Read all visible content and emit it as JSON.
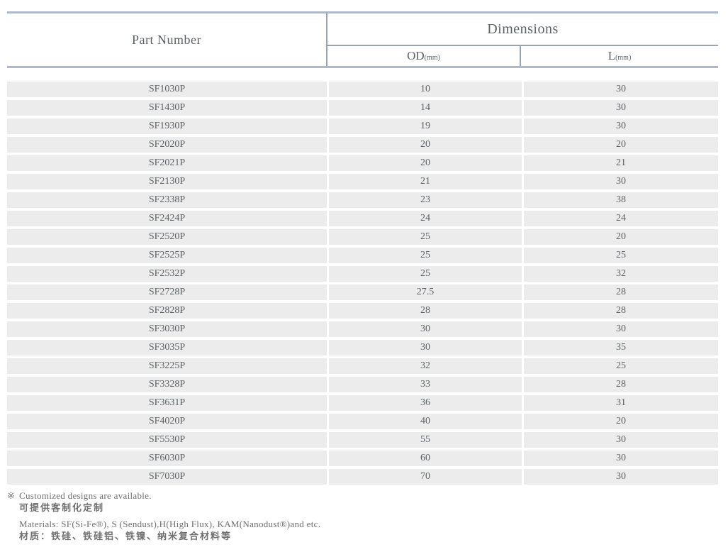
{
  "table": {
    "header": {
      "part_number_label": "Part Number",
      "dimensions_label": "Dimensions",
      "od_label": "OD",
      "od_unit": "(mm)",
      "l_label": "L",
      "l_unit": "(mm)"
    },
    "rows": [
      {
        "part_number": "SF1030P",
        "od_mm": "10",
        "l_mm": "30"
      },
      {
        "part_number": "SF1430P",
        "od_mm": "14",
        "l_mm": "30"
      },
      {
        "part_number": "SF1930P",
        "od_mm": "19",
        "l_mm": "30"
      },
      {
        "part_number": "SF2020P",
        "od_mm": "20",
        "l_mm": "20"
      },
      {
        "part_number": "SF2021P",
        "od_mm": "20",
        "l_mm": "21"
      },
      {
        "part_number": "SF2130P",
        "od_mm": "21",
        "l_mm": "30"
      },
      {
        "part_number": "SF2338P",
        "od_mm": "23",
        "l_mm": "38"
      },
      {
        "part_number": "SF2424P",
        "od_mm": "24",
        "l_mm": "24"
      },
      {
        "part_number": "SF2520P",
        "od_mm": "25",
        "l_mm": "20"
      },
      {
        "part_number": "SF2525P",
        "od_mm": "25",
        "l_mm": "25"
      },
      {
        "part_number": "SF2532P",
        "od_mm": "25",
        "l_mm": "32"
      },
      {
        "part_number": "SF2728P",
        "od_mm": "27.5",
        "l_mm": "28"
      },
      {
        "part_number": "SF2828P",
        "od_mm": "28",
        "l_mm": "28"
      },
      {
        "part_number": "SF3030P",
        "od_mm": "30",
        "l_mm": "30"
      },
      {
        "part_number": "SF3035P",
        "od_mm": "30",
        "l_mm": "35"
      },
      {
        "part_number": "SF3225P",
        "od_mm": "32",
        "l_mm": "25"
      },
      {
        "part_number": "SF3328P",
        "od_mm": "33",
        "l_mm": "28"
      },
      {
        "part_number": "SF3631P",
        "od_mm": "36",
        "l_mm": "31"
      },
      {
        "part_number": "SF4020P",
        "od_mm": "40",
        "l_mm": "20"
      },
      {
        "part_number": "SF5530P",
        "od_mm": "55",
        "l_mm": "30"
      },
      {
        "part_number": "SF6030P",
        "od_mm": "60",
        "l_mm": "30"
      },
      {
        "part_number": "SF7030P",
        "od_mm": "70",
        "l_mm": "30"
      }
    ]
  },
  "notes": {
    "ref_mark": "※",
    "customized_en": "Customized designs are available.",
    "customized_zh": "可提供客制化定制",
    "materials_en": "Materials: SF(Si-Fe®), S (Sendust),H(High Flux), KAM(Nanodust®)and etc.",
    "materials_zh": "材质：铁硅、铁硅铝、铁镍、纳米复合材料等"
  },
  "colors": {
    "border_strong": "#aeb8c6",
    "border_line": "#98a3b4",
    "row_bg": "#ececec",
    "text": "#5d6166",
    "note_text": "#6f6f6f"
  }
}
